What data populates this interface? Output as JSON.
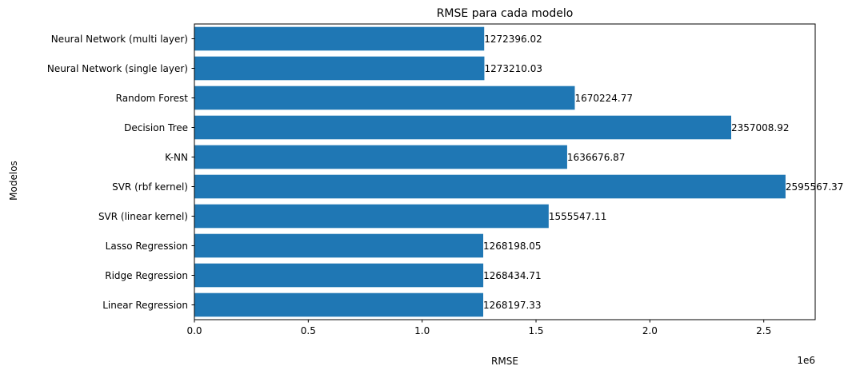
{
  "chart_data": {
    "type": "bar",
    "orientation": "horizontal",
    "title": "RMSE para cada modelo",
    "xlabel": "RMSE",
    "ylabel": "Modelos",
    "categories": [
      "Linear Regression",
      "Ridge Regression",
      "Lasso Regression",
      "SVR (linear kernel)",
      "SVR (rbf kernel)",
      "K-NN",
      "Decision Tree",
      "Random Forest",
      "Neural Network (single layer)",
      "Neural Network (multi layer)"
    ],
    "values": [
      1268197.33,
      1268434.71,
      1268198.05,
      1555547.11,
      2595567.37,
      1636676.87,
      2357008.92,
      1670224.77,
      1273210.03,
      1272396.02
    ],
    "data_labels": [
      "1268197.33",
      "1268434.71",
      "1268198.05",
      "1555547.11",
      "2595567.37",
      "1636676.87",
      "2357008.92",
      "1670224.77",
      "1273210.03",
      "1272396.02"
    ],
    "xticks": [
      0.0,
      0.5,
      1.0,
      1.5,
      2.0,
      2.5
    ],
    "xtick_labels": [
      "0.0",
      "0.5",
      "1.0",
      "1.5",
      "2.0",
      "2.5"
    ],
    "x_offset_label": "1e6",
    "xlim": [
      0,
      2725845.74
    ],
    "bar_color": "#1f77b4",
    "grid": false,
    "legend": false
  }
}
